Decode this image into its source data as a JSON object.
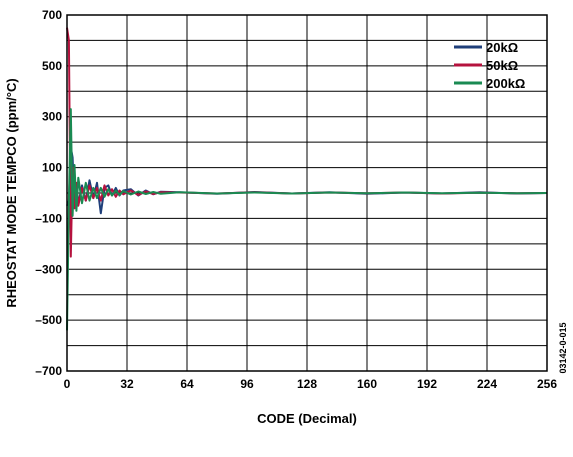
{
  "chart_data": {
    "type": "line",
    "xlabel": "CODE (Decimal)",
    "ylabel": "RHEOSTAT MODE TEMPCO (ppm/°C)",
    "xlim": [
      0,
      256
    ],
    "ylim": [
      -700,
      700
    ],
    "x_ticks": [
      "0",
      "32",
      "64",
      "96",
      "128",
      "160",
      "192",
      "224",
      "256"
    ],
    "y_ticks": [
      "700",
      "500",
      "300",
      "100",
      "–100",
      "–300",
      "–500",
      "–700"
    ],
    "grid": true,
    "legend_position": "top-right",
    "figure_id": "03142-0-015",
    "series": [
      {
        "name": "20kΩ",
        "color": "#1f3f7a",
        "x": [
          0,
          1,
          2,
          3,
          4,
          5,
          6,
          8,
          10,
          12,
          14,
          16,
          18,
          20,
          22,
          24,
          26,
          28,
          30,
          34,
          38,
          42,
          46,
          50,
          60,
          80,
          100,
          120,
          140,
          160,
          180,
          200,
          220,
          240,
          256
        ],
        "y": [
          -50,
          -30,
          180,
          140,
          -60,
          10,
          -40,
          30,
          -30,
          50,
          -20,
          40,
          -80,
          20,
          30,
          -10,
          20,
          -10,
          10,
          15,
          -10,
          10,
          -5,
          5,
          3,
          -3,
          4,
          -2,
          3,
          -3,
          2,
          -2,
          3,
          -2,
          0
        ]
      },
      {
        "name": "50kΩ",
        "color": "#b5123e",
        "x": [
          0,
          1,
          2,
          3,
          4,
          5,
          6,
          8,
          10,
          12,
          14,
          16,
          18,
          20,
          22,
          24,
          26,
          28,
          30,
          34,
          38,
          42,
          46,
          50,
          60,
          80,
          100,
          120,
          140,
          160,
          180,
          200,
          220,
          240,
          256
        ],
        "y": [
          650,
          600,
          -250,
          100,
          -60,
          40,
          -50,
          20,
          -30,
          30,
          -20,
          20,
          -30,
          30,
          -10,
          15,
          -15,
          10,
          -5,
          10,
          -8,
          6,
          -4,
          3,
          2,
          -2,
          3,
          -2,
          2,
          -1,
          2,
          -2,
          1,
          -1,
          0
        ]
      },
      {
        "name": "200kΩ",
        "color": "#1a8a52",
        "x": [
          0,
          1,
          2,
          3,
          4,
          5,
          6,
          8,
          10,
          12,
          14,
          16,
          18,
          20,
          22,
          24,
          26,
          28,
          30,
          34,
          38,
          42,
          46,
          50,
          60,
          80,
          100,
          120,
          140,
          160,
          180,
          200,
          220,
          240,
          256
        ],
        "y": [
          -540,
          -30,
          330,
          -90,
          110,
          -70,
          60,
          -40,
          40,
          -30,
          20,
          -20,
          20,
          -15,
          15,
          -10,
          10,
          -8,
          8,
          -6,
          6,
          -4,
          4,
          -3,
          3,
          -2,
          2,
          -2,
          2,
          -1,
          2,
          -1,
          1,
          -1,
          0
        ]
      }
    ]
  }
}
